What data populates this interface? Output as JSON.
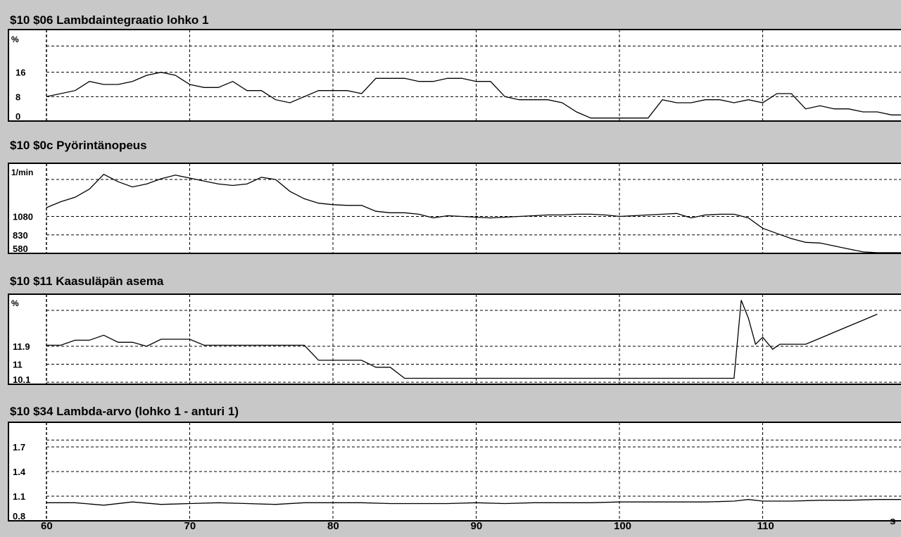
{
  "x_unit": "s",
  "chart_data": [
    {
      "type": "line",
      "title": "$10 $06 Lambdaintegraatio lohko 1",
      "unit": "%",
      "xlim": [
        60,
        120
      ],
      "ylim": [
        0,
        30
      ],
      "yticks": [
        {
          "label": "16",
          "value": 16
        },
        {
          "label": "8",
          "value": 8
        },
        {
          "label": "0",
          "value": 0
        }
      ],
      "series": [
        {
          "x": [
            60,
            62,
            63,
            64,
            65,
            66,
            67,
            68,
            69,
            70,
            71,
            72,
            73,
            74,
            75,
            76,
            77,
            78,
            79,
            80,
            81,
            82,
            83,
            84,
            85,
            86,
            87,
            88,
            89,
            90,
            91,
            92,
            93,
            94,
            95,
            96,
            97,
            98,
            99,
            100,
            101,
            102,
            103,
            104,
            105,
            106,
            107,
            108,
            109,
            110,
            111,
            112,
            113,
            114,
            115,
            116,
            117,
            118,
            119,
            120
          ],
          "values": [
            8,
            10,
            13,
            12,
            12,
            13,
            15,
            16,
            15,
            12,
            11,
            11,
            13,
            10,
            10,
            7,
            6,
            8,
            10,
            10,
            10,
            9,
            14,
            14,
            14,
            13,
            13,
            14,
            14,
            13,
            13,
            8,
            7,
            7,
            7,
            6,
            3,
            1,
            1,
            1,
            1,
            1,
            7,
            6,
            6,
            7,
            7,
            6,
            7,
            6,
            9,
            9,
            4,
            5,
            4,
            4,
            3,
            3,
            2,
            2
          ]
        }
      ]
    },
    {
      "type": "line",
      "title": "$10 $0c Pyörintänopeus",
      "unit": "1/min",
      "xlim": [
        60,
        120
      ],
      "ylim": [
        580,
        1800
      ],
      "yticks": [
        {
          "label": "1080",
          "value": 1080
        },
        {
          "label": "830",
          "value": 830
        },
        {
          "label": "580",
          "value": 580
        }
      ],
      "series": [
        {
          "x": [
            60,
            61,
            62,
            63,
            64,
            65,
            66,
            67,
            68,
            69,
            70,
            71,
            72,
            73,
            74,
            75,
            76,
            77,
            78,
            79,
            80,
            81,
            82,
            83,
            84,
            85,
            86,
            87,
            88,
            89,
            90,
            91,
            92,
            93,
            94,
            95,
            96,
            97,
            98,
            99,
            100,
            101,
            102,
            103,
            104,
            105,
            106,
            107,
            108,
            109,
            110,
            111,
            112,
            113,
            114,
            115,
            116,
            117,
            118,
            119,
            120
          ],
          "values": [
            1200,
            1280,
            1340,
            1450,
            1650,
            1550,
            1480,
            1520,
            1590,
            1640,
            1600,
            1560,
            1520,
            1500,
            1520,
            1610,
            1580,
            1420,
            1320,
            1260,
            1240,
            1230,
            1230,
            1150,
            1130,
            1130,
            1110,
            1060,
            1090,
            1080,
            1070,
            1060,
            1070,
            1080,
            1090,
            1100,
            1100,
            1110,
            1110,
            1100,
            1080,
            1090,
            1100,
            1110,
            1120,
            1060,
            1100,
            1110,
            1110,
            1060,
            920,
            850,
            780,
            730,
            720,
            680,
            640,
            600,
            560,
            540,
            540
          ]
        }
      ]
    },
    {
      "type": "line",
      "title": "$10 $11 Kaasuläpän asema",
      "unit": "%",
      "xlim": [
        60,
        120
      ],
      "ylim": [
        10,
        14.5
      ],
      "yticks": [
        {
          "label": "11.9",
          "value": 11.9
        },
        {
          "label": "11",
          "value": 11
        },
        {
          "label": "10.1",
          "value": 10.1
        }
      ],
      "series": [
        {
          "x": [
            60,
            61,
            62,
            63,
            64,
            65,
            66,
            67,
            68,
            69,
            70,
            71,
            72,
            73,
            74,
            75,
            76,
            77,
            78,
            79,
            80,
            81,
            82,
            83,
            84,
            85,
            86,
            88,
            90,
            92,
            94,
            96,
            98,
            100,
            102,
            104,
            106,
            107,
            108,
            108.5,
            109,
            109.5,
            110,
            110.7,
            111.2,
            112,
            113,
            114,
            115,
            116,
            117,
            118
          ],
          "values": [
            11.95,
            11.95,
            12.2,
            12.2,
            12.45,
            12.1,
            12.1,
            11.9,
            12.25,
            12.25,
            12.25,
            11.95,
            11.95,
            11.95,
            11.95,
            11.95,
            11.95,
            11.95,
            11.95,
            11.2,
            11.2,
            11.2,
            11.2,
            10.85,
            10.85,
            10.3,
            10.3,
            10.3,
            10.3,
            10.3,
            10.3,
            10.3,
            10.3,
            10.3,
            10.3,
            10.3,
            10.3,
            10.3,
            10.3,
            14.2,
            13.3,
            12.0,
            12.35,
            11.75,
            12.0,
            12.0,
            12.0,
            12.3,
            12.6,
            12.9,
            13.2,
            13.5
          ]
        }
      ]
    },
    {
      "type": "line",
      "title": "$10 $34 Lambda-arvo (lohko 1 - anturi 1)",
      "unit": "",
      "xlim": [
        60,
        120
      ],
      "ylim": [
        0.8,
        2.0
      ],
      "yticks": [
        {
          "label": "1.7",
          "value": 1.7
        },
        {
          "label": "1.4",
          "value": 1.4
        },
        {
          "label": "1.1",
          "value": 1.1
        },
        {
          "label": "0.8",
          "value": 0.8
        }
      ],
      "xticks": [
        60,
        70,
        80,
        90,
        100,
        110
      ],
      "series": [
        {
          "x": [
            60,
            62,
            64,
            66,
            68,
            70,
            72,
            74,
            76,
            78,
            80,
            82,
            84,
            86,
            88,
            90,
            92,
            94,
            96,
            98,
            100,
            102,
            104,
            106,
            108,
            109,
            110,
            112,
            114,
            116,
            118,
            120
          ],
          "values": [
            1.02,
            1.02,
            0.99,
            1.03,
            1.0,
            1.01,
            1.02,
            1.01,
            1.0,
            1.02,
            1.02,
            1.02,
            1.01,
            1.01,
            1.01,
            1.02,
            1.01,
            1.02,
            1.02,
            1.02,
            1.03,
            1.03,
            1.03,
            1.03,
            1.04,
            1.06,
            1.04,
            1.04,
            1.05,
            1.05,
            1.06,
            1.06
          ]
        }
      ]
    }
  ]
}
